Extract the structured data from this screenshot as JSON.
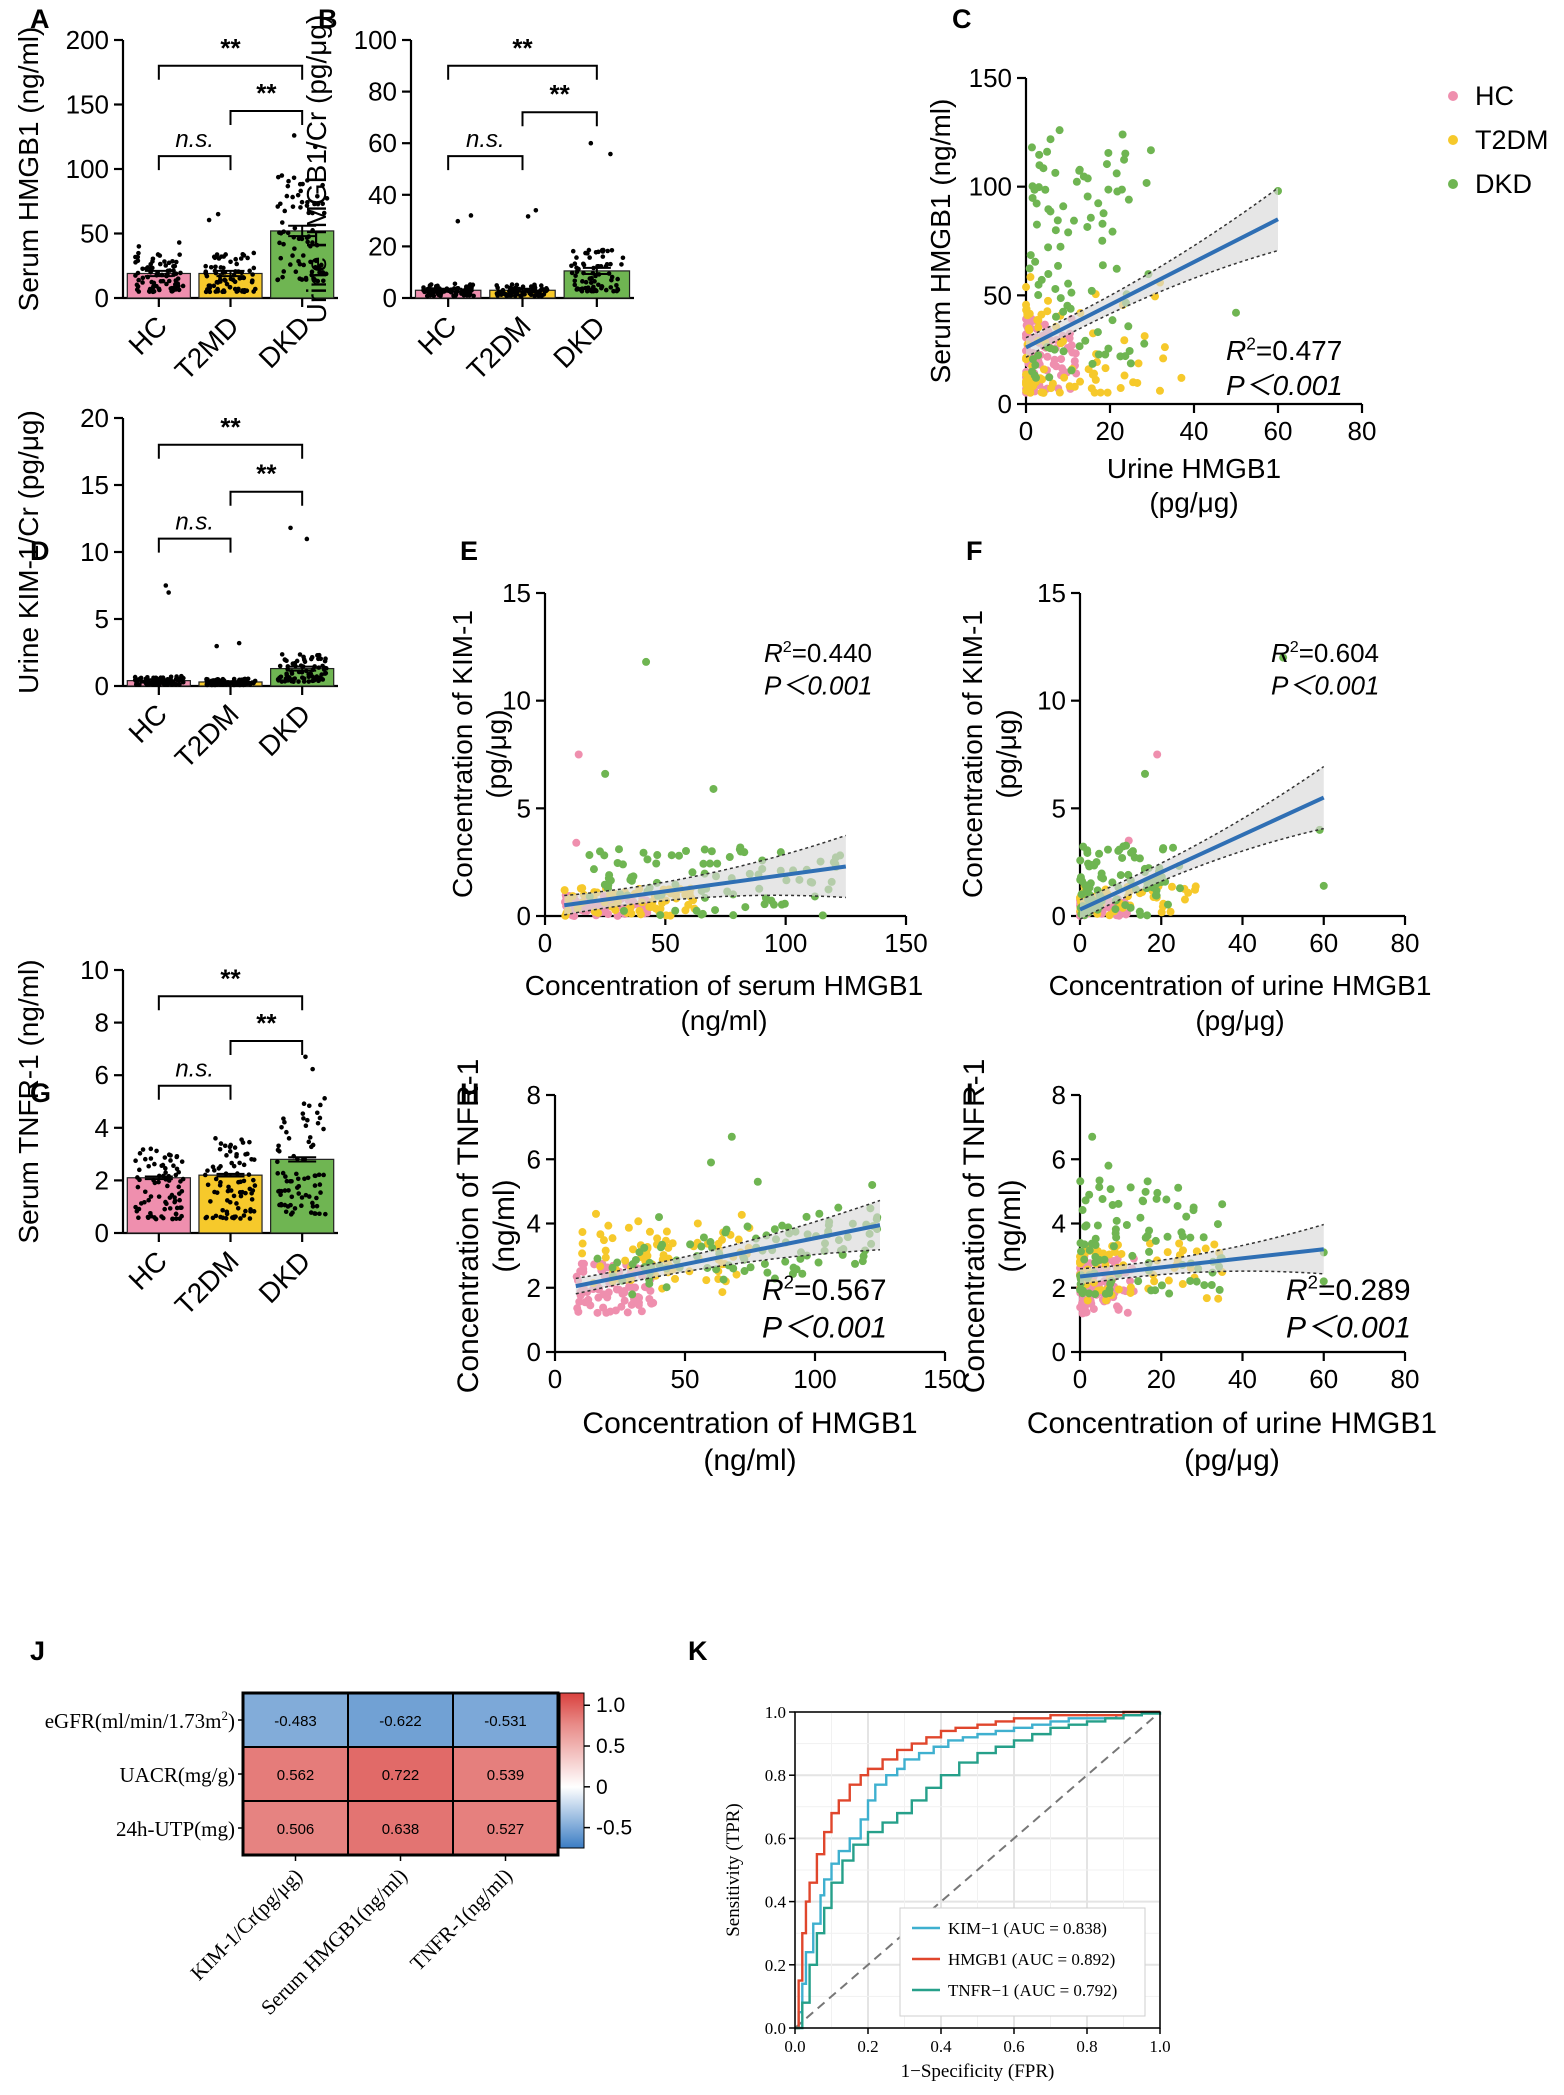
{
  "colors": {
    "hc": "#ef8fae",
    "t2dm": "#f6c92b",
    "dkd": "#6fb552",
    "regression": "#2f6fb4",
    "heat_pos": "#d9413e",
    "heat_neg": "#3b7dc4",
    "roc_kim": "#3fb0cf",
    "roc_hmgb1": "#e0462c",
    "roc_tnfr": "#26a08a"
  },
  "chart_data": [
    {
      "panel": "A",
      "type": "bar",
      "categories": [
        "HC",
        "T2MD",
        "DKD"
      ],
      "values": [
        19,
        19,
        52
      ],
      "errors": [
        2,
        2,
        4
      ],
      "ylabel": "Serum HMGB1 (ng/ml)",
      "ylim": [
        0,
        200
      ],
      "yticks": [
        0,
        50,
        100,
        150,
        200
      ],
      "points_max": [
        43,
        65,
        126
      ],
      "significance": [
        {
          "from": 0,
          "to": 2,
          "label": "**",
          "level": 180
        },
        {
          "from": 1,
          "to": 2,
          "label": "**",
          "level": 145
        },
        {
          "from": 0,
          "to": 1,
          "label": "n.s.",
          "level": 110
        }
      ]
    },
    {
      "panel": "B",
      "type": "bar",
      "categories": [
        "HC",
        "T2DM",
        "DKD"
      ],
      "values": [
        3,
        3,
        10.5
      ],
      "errors": [
        0.6,
        0.6,
        1.2
      ],
      "ylabel": "Urine HMGB1/Cr (pg/μg)",
      "ylim": [
        0,
        100
      ],
      "yticks": [
        0,
        20,
        40,
        60,
        80,
        100
      ],
      "points_max": [
        32,
        34,
        60
      ],
      "significance": [
        {
          "from": 0,
          "to": 2,
          "label": "**",
          "level": 90
        },
        {
          "from": 1,
          "to": 2,
          "label": "**",
          "level": 72
        },
        {
          "from": 0,
          "to": 1,
          "label": "n.s.",
          "level": 55
        }
      ]
    },
    {
      "panel": "C",
      "type": "scatter",
      "xlabel": "Urine HMGB1",
      "xlabel2": "(pg/μg)",
      "ylabel": "Serum HMGB1 (ng/ml)",
      "xlim": [
        0,
        80
      ],
      "xticks": [
        0,
        20,
        40,
        60,
        80
      ],
      "ylim": [
        0,
        150
      ],
      "yticks": [
        0,
        50,
        100,
        150
      ],
      "fit": [
        [
          0,
          26
        ],
        [
          60,
          85
        ]
      ],
      "band_end": [
        66,
        103
      ],
      "r2_label": "R",
      "r2_sup": "2",
      "r2_value": "=0.477",
      "p_value": "P＜0.001",
      "groups_x_range": [
        [
          0,
          15
        ],
        [
          0,
          40
        ],
        [
          0,
          60
        ]
      ],
      "groups_y_range": [
        [
          5,
          40
        ],
        [
          5,
          60
        ],
        [
          10,
          126
        ]
      ]
    },
    {
      "panel": "D",
      "type": "bar",
      "categories": [
        "HC",
        "T2DM",
        "DKD"
      ],
      "values": [
        0.4,
        0.3,
        1.3
      ],
      "errors": [
        0.1,
        0.05,
        0.15
      ],
      "ylabel": "Urine  KIM-1/Cr (pg/μg)",
      "ylim": [
        0,
        20
      ],
      "yticks": [
        0,
        5,
        10,
        15,
        20
      ],
      "points_max": [
        7.5,
        3.2,
        11.8
      ],
      "significance": [
        {
          "from": 0,
          "to": 2,
          "label": "**",
          "level": 18
        },
        {
          "from": 1,
          "to": 2,
          "label": "**",
          "level": 14.5
        },
        {
          "from": 0,
          "to": 1,
          "label": "n.s.",
          "level": 11
        }
      ]
    },
    {
      "panel": "E",
      "type": "scatter",
      "xlabel": "Concentration of serum HMGB1",
      "xlabel2": "(ng/ml)",
      "ylabel": "Concentration of KIM-1",
      "ylabel2": "(pg/μg)",
      "xlim": [
        0,
        150
      ],
      "xticks": [
        0,
        50,
        100,
        150
      ],
      "ylim": [
        0,
        15
      ],
      "yticks": [
        0,
        5,
        10,
        15
      ],
      "fit": [
        [
          8,
          0.5
        ],
        [
          125,
          2.3
        ]
      ],
      "r2_label": "R",
      "r2_sup": "2",
      "r2_value": "=0.440",
      "p_value": "P＜0.001"
    },
    {
      "panel": "F",
      "type": "scatter",
      "xlabel": "Concentration of urine HMGB1",
      "xlabel2": "(pg/μg)",
      "ylabel": "Concentration of KIM-1",
      "ylabel2": "(pg/μg)",
      "xlim": [
        0,
        80
      ],
      "xticks": [
        0,
        20,
        40,
        60,
        80
      ],
      "ylim": [
        0,
        15
      ],
      "yticks": [
        0,
        5,
        10,
        15
      ],
      "fit": [
        [
          0,
          0.3
        ],
        [
          60,
          5.5
        ]
      ],
      "r2_label": "R",
      "r2_sup": "2",
      "r2_value": "=0.604",
      "p_value": "P＜0.001"
    },
    {
      "panel": "G",
      "type": "bar",
      "categories": [
        "HC",
        "T2DM",
        "DKD"
      ],
      "values": [
        2.1,
        2.2,
        2.8
      ],
      "errors": [
        0.05,
        0.05,
        0.08
      ],
      "ylabel": "Serum TNFR-1 (ng/ml)",
      "ylim": [
        0,
        10
      ],
      "yticks": [
        0,
        2,
        4,
        6,
        8,
        10
      ],
      "points_max": [
        3.2,
        3.6,
        6.7
      ],
      "significance": [
        {
          "from": 0,
          "to": 2,
          "label": "**",
          "level": 9
        },
        {
          "from": 1,
          "to": 2,
          "label": "**",
          "level": 7.3
        },
        {
          "from": 0,
          "to": 1,
          "label": "n.s.",
          "level": 5.6
        }
      ]
    },
    {
      "panel": "H",
      "type": "scatter",
      "xlabel": "Concentration of HMGB1",
      "xlabel2": "(ng/ml)",
      "ylabel": "Concentration of TNFR-1",
      "ylabel2": "(ng/ml)",
      "xlim": [
        0,
        150
      ],
      "xticks": [
        0,
        50,
        100,
        150
      ],
      "ylim": [
        0,
        8
      ],
      "yticks": [
        0,
        2,
        4,
        6,
        8
      ],
      "fit": [
        [
          8,
          2.05
        ],
        [
          125,
          3.95
        ]
      ],
      "r2_label": "R",
      "r2_sup": "2",
      "r2_value": "=0.567",
      "p_value": "P＜0.001"
    },
    {
      "panel": "I",
      "type": "scatter",
      "xlabel": "Concentration of urine HMGB1",
      "xlabel2": "(pg/μg)",
      "ylabel": "Concentration of TNFR-1",
      "ylabel2": "(ng/ml)",
      "xlim": [
        0,
        80
      ],
      "xticks": [
        0,
        20,
        40,
        60,
        80
      ],
      "ylim": [
        0,
        8
      ],
      "yticks": [
        0,
        2,
        4,
        6,
        8
      ],
      "fit": [
        [
          0,
          2.35
        ],
        [
          60,
          3.2
        ]
      ],
      "r2_label": "R",
      "r2_sup": "2",
      "r2_value": "=0.289",
      "p_value": "P＜0.001"
    },
    {
      "panel": "J",
      "type": "heatmap",
      "rows": [
        "eGFR(ml/min/1.73m",
        "UACR(mg/g)",
        "24h-UTP(mg)"
      ],
      "row0_sup": "2",
      "row0_close": ")",
      "columns": [
        "KIM-1/Cr(pg/μg)",
        "Serum HMGB1(ng/ml)",
        "TNFR-1(ng/ml)"
      ],
      "values": [
        [
          -0.483,
          -0.622,
          -0.531
        ],
        [
          0.562,
          0.722,
          0.539
        ],
        [
          0.506,
          0.638,
          0.527
        ]
      ],
      "value_labels": [
        [
          "-0.483",
          "-0.622",
          "-0.531"
        ],
        [
          "0.562",
          "0.722",
          "0.539"
        ],
        [
          "0.506",
          "0.638",
          "0.527"
        ]
      ],
      "colorbar_ticks": [
        "1.0",
        "0.5",
        "0",
        "-0.5"
      ],
      "colorbar_values": [
        1.0,
        0.5,
        0,
        -0.5
      ],
      "colorbar_range": [
        -0.75,
        1.15
      ]
    },
    {
      "panel": "K",
      "type": "line",
      "xlabel": "1−Specificity (FPR)",
      "ylabel": "Sensitivity (TPR)",
      "xlim": [
        0,
        1
      ],
      "ylim": [
        0,
        1
      ],
      "ticks": [
        "0.0",
        "0.2",
        "0.4",
        "0.6",
        "0.8",
        "1.0"
      ],
      "series": [
        {
          "name": "KIM−1 (AUC = 0.838)",
          "x": [
            0,
            0.01,
            0.02,
            0.03,
            0.05,
            0.07,
            0.08,
            0.1,
            0.12,
            0.15,
            0.18,
            0.2,
            0.22,
            0.25,
            0.28,
            0.3,
            0.34,
            0.38,
            0.42,
            0.46,
            0.5,
            0.55,
            0.6,
            0.65,
            0.7,
            0.75,
            0.8,
            0.88,
            0.95,
            1
          ],
          "y": [
            0,
            0.05,
            0.14,
            0.24,
            0.33,
            0.42,
            0.47,
            0.52,
            0.56,
            0.6,
            0.66,
            0.72,
            0.77,
            0.8,
            0.82,
            0.85,
            0.87,
            0.89,
            0.91,
            0.92,
            0.93,
            0.94,
            0.95,
            0.96,
            0.97,
            0.98,
            0.98,
            0.99,
            1.0,
            1.0
          ]
        },
        {
          "name": "HMGB1 (AUC = 0.892)",
          "x": [
            0,
            0.01,
            0.02,
            0.03,
            0.04,
            0.06,
            0.08,
            0.1,
            0.12,
            0.15,
            0.18,
            0.2,
            0.24,
            0.28,
            0.32,
            0.36,
            0.4,
            0.44,
            0.5,
            0.55,
            0.6,
            0.7,
            0.8,
            0.9,
            1
          ],
          "y": [
            0,
            0.15,
            0.3,
            0.4,
            0.46,
            0.55,
            0.62,
            0.68,
            0.72,
            0.77,
            0.8,
            0.82,
            0.85,
            0.88,
            0.9,
            0.92,
            0.94,
            0.95,
            0.96,
            0.97,
            0.98,
            0.99,
            0.99,
            1.0,
            1.0
          ]
        },
        {
          "name": "TNFR−1 (AUC = 0.792)",
          "x": [
            0,
            0.02,
            0.04,
            0.06,
            0.08,
            0.1,
            0.13,
            0.16,
            0.2,
            0.24,
            0.28,
            0.32,
            0.36,
            0.4,
            0.45,
            0.5,
            0.55,
            0.6,
            0.65,
            0.7,
            0.75,
            0.8,
            0.85,
            0.9,
            0.95,
            1
          ],
          "y": [
            0,
            0.08,
            0.2,
            0.3,
            0.38,
            0.46,
            0.53,
            0.58,
            0.62,
            0.65,
            0.68,
            0.72,
            0.76,
            0.8,
            0.84,
            0.87,
            0.89,
            0.91,
            0.93,
            0.95,
            0.96,
            0.97,
            0.98,
            0.99,
            0.995,
            1.0
          ]
        }
      ]
    }
  ],
  "legend": {
    "items": [
      "HC",
      "T2DM",
      "DKD"
    ]
  },
  "panel_letters": [
    "A",
    "B",
    "C",
    "D",
    "E",
    "F",
    "G",
    "H",
    "I",
    "J",
    "K"
  ]
}
